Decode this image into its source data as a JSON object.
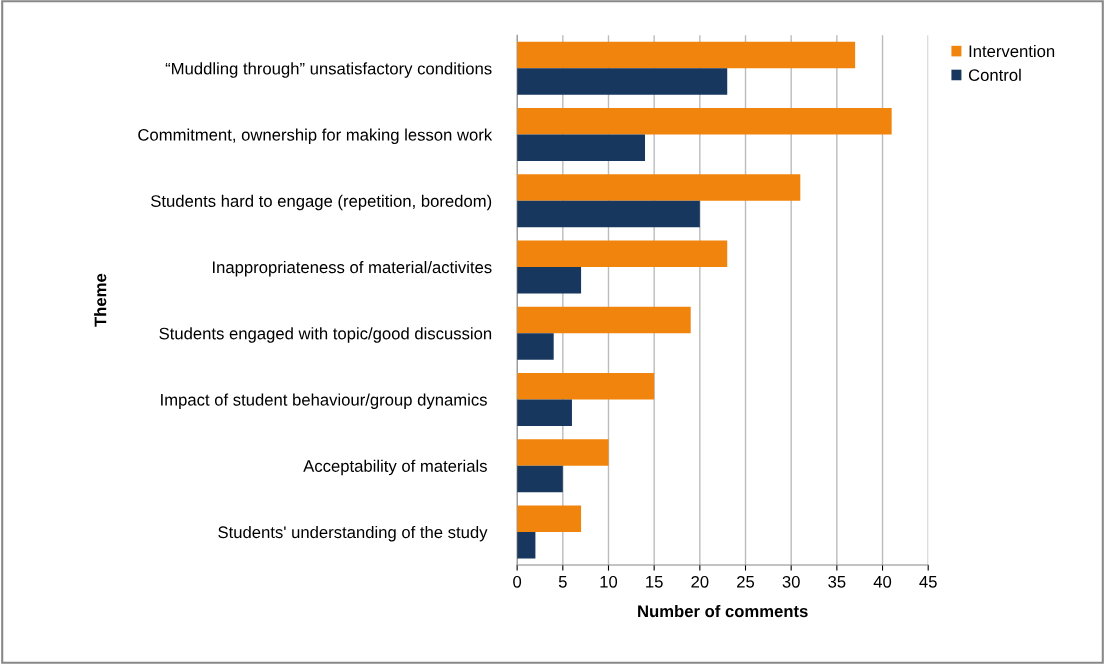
{
  "chart_data": {
    "type": "bar",
    "orientation": "horizontal",
    "xlabel": "Number of comments",
    "ylabel": "Theme",
    "categories": [
      "“Muddling through” unsatisfactory conditions",
      "Commitment, ownership for making lesson work",
      "Students hard to engage (repetition, boredom)",
      "Inappropriateness of material/activites",
      "Students engaged with topic/good discussion",
      "Impact of student behaviour/group dynamics ",
      "Acceptability of materials ",
      "Students' understanding of the study "
    ],
    "series": [
      {
        "name": "Intervention",
        "color": "#f0840c",
        "values": [
          37,
          41,
          31,
          23,
          19,
          15,
          10,
          7
        ]
      },
      {
        "name": "Control",
        "color": "#17375e",
        "values": [
          23,
          14,
          20,
          7,
          4,
          6,
          5,
          2
        ]
      }
    ],
    "xlim": [
      0,
      45
    ],
    "xticks": [
      0,
      5,
      10,
      15,
      20,
      25,
      30,
      35,
      40,
      45
    ],
    "grid": "x",
    "legend": "top right"
  }
}
